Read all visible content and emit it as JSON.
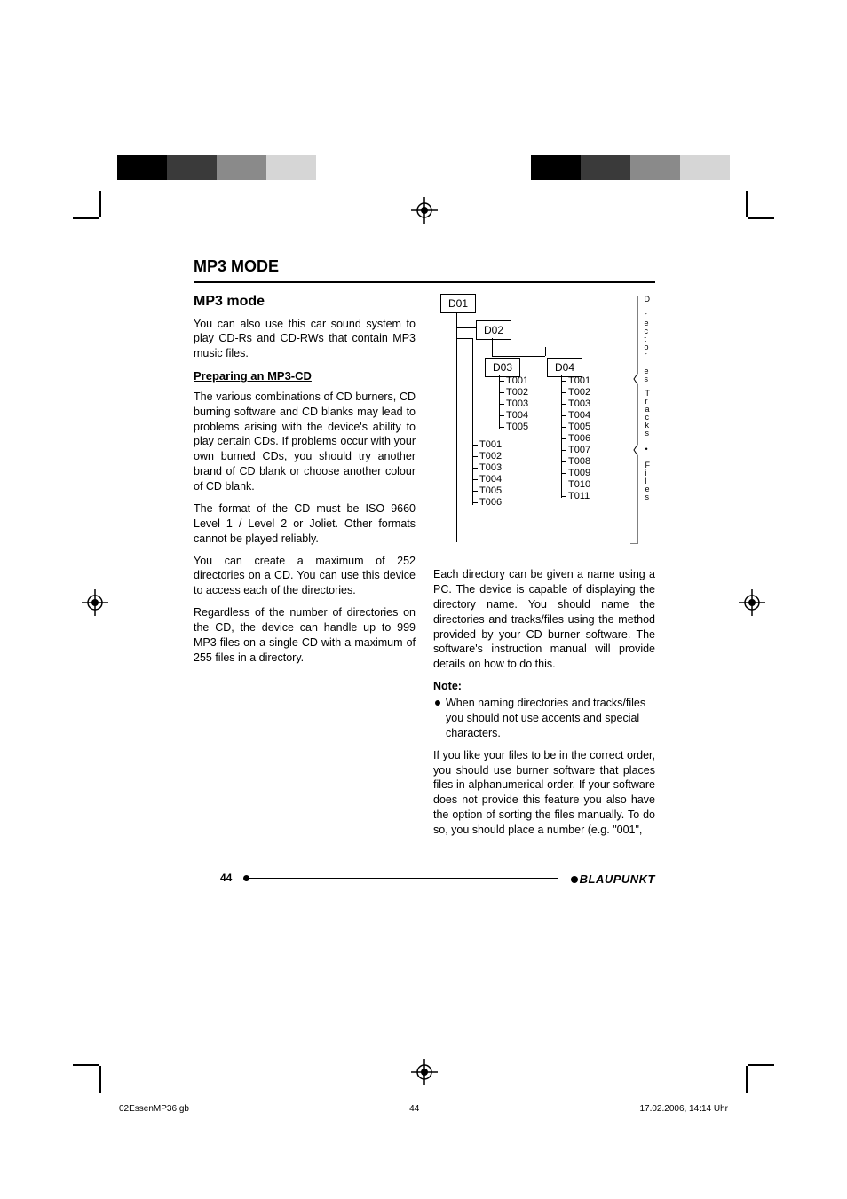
{
  "color_bar_left": [
    "#000000",
    "#000000",
    "#3a3a3a",
    "#3a3a3a",
    "#8a8a8a",
    "#8a8a8a",
    "#d6d6d6",
    "#d6d6d6"
  ],
  "color_bar_right": [
    "#d6d6d6",
    "#d6d6d6",
    "#8a8a8a",
    "#8a8a8a",
    "#3a3a3a",
    "#3a3a3a",
    "#000000",
    "#000000"
  ],
  "section_title": "MP3 MODE",
  "subsection_title": "MP3 mode",
  "left_col": {
    "intro": "You can also use this car sound system to play CD-Rs and CD-RWs that contain MP3 music files.",
    "prep_title": "Preparing an MP3-CD",
    "p1": "The various combinations of CD burners, CD burning software and CD blanks may lead to problems arising with the device's ability to play certain CDs. If problems occur with your own burned CDs, you should try another brand of CD blank or choose another colour of CD blank.",
    "p2": "The format of the CD must be ISO 9660 Level 1 / Level 2 or Joliet. Other formats cannot be played reliably.",
    "p3": "You can create a maximum of 252 directories on a CD. You can use this device to access each of the directories.",
    "p4": "Regardless of the number of directories on the CD, the device can handle up to 999 MP3 files on a single CD with a maximum of 255 files in a directory."
  },
  "right_col": {
    "p1": "Each directory can be given a name using a PC. The device is capable of displaying the directory name. You should name the directories and tracks/files using the method provided by your CD burner software. The software's instruction manual will provide details on how to do this.",
    "note_title": "Note:",
    "bullet": "When naming directories and tracks/files you should not use accents and special characters.",
    "p2": "If you like your files to be in the correct order, you should use burner software that places files in alphanumerical order. If your software does not provide this feature you also have the option of sorting the files manually. To do so, you should place a number (e.g. \"001\","
  },
  "diagram": {
    "dirs": [
      "D01",
      "D02",
      "D03",
      "D04"
    ],
    "d03_tracks": [
      "T001",
      "T002",
      "T003",
      "T004",
      "T005"
    ],
    "d02_tracks": [
      "T001",
      "T002",
      "T003",
      "T004",
      "T005",
      "T006"
    ],
    "d04_tracks": [
      "T001",
      "T002",
      "T003",
      "T004",
      "T005",
      "T006",
      "T007",
      "T008",
      "T009",
      "T010",
      "T011"
    ],
    "label_dirs": "Directories",
    "label_tracks": "Tracks • Files"
  },
  "page_number": "44",
  "brand": "BLAUPUNKT",
  "meta": {
    "filename": "02EssenMP36 gb",
    "page": "44",
    "timestamp": "17.02.2006, 14:14 Uhr"
  }
}
